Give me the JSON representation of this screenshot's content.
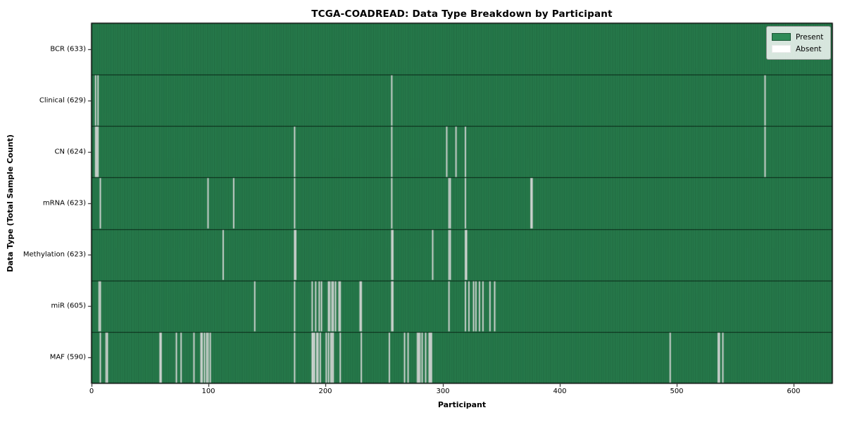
{
  "title": "TCGA-COADREAD: Data Type Breakdown by Participant",
  "xlabel": "Participant",
  "ylabel": "Data Type (Total Sample Count)",
  "legend": {
    "present_label": "Present",
    "absent_label": "Absent"
  },
  "colors": {
    "present": "#2e8b57",
    "absent": "#ffffff",
    "bar_edge": "rgba(8,44,24,0.55)",
    "row_divider": "rgba(5,25,14,0.85)",
    "axis": "#000000"
  },
  "chart_data": {
    "type": "heatmap",
    "title": "TCGA-COADREAD: Data Type Breakdown by Participant",
    "xlabel": "Participant",
    "ylabel": "Data Type (Total Sample Count)",
    "legend_entries": [
      "Present",
      "Absent"
    ],
    "legend_position": "upper right",
    "total_participants": 633,
    "xlim": [
      0,
      633
    ],
    "x_ticks": [
      0,
      100,
      200,
      300,
      400,
      500,
      600
    ],
    "rows": [
      {
        "label": "BCR (633)",
        "data_type": "BCR",
        "count": 633,
        "absent": []
      },
      {
        "label": "Clinical (629)",
        "data_type": "Clinical",
        "count": 629,
        "absent": [
          3,
          5,
          256,
          575
        ]
      },
      {
        "label": "CN (624)",
        "data_type": "CN",
        "count": 624,
        "absent": [
          3,
          4,
          5,
          173,
          256,
          303,
          311,
          319,
          575
        ]
      },
      {
        "label": "mRNA (623)",
        "data_type": "mRNA",
        "count": 623,
        "absent": [
          7,
          99,
          121,
          173,
          256,
          305,
          306,
          319,
          375,
          376
        ]
      },
      {
        "label": "Methylation (623)",
        "data_type": "Methylation",
        "count": 623,
        "absent": [
          112,
          173,
          174,
          256,
          257,
          291,
          305,
          306,
          319,
          320
        ]
      },
      {
        "label": "miR (605)",
        "data_type": "miR",
        "count": 605,
        "absent": [
          6,
          7,
          139,
          173,
          188,
          191,
          194,
          196,
          202,
          203,
          205,
          206,
          208,
          211,
          212,
          229,
          230,
          256,
          257,
          305,
          319,
          322,
          326,
          328,
          331,
          334,
          340,
          344
        ]
      },
      {
        "label": "MAF (590)",
        "data_type": "MAF",
        "count": 590,
        "absent": [
          7,
          12,
          13,
          58,
          59,
          72,
          76,
          87,
          93,
          94,
          96,
          98,
          99,
          101,
          173,
          188,
          189,
          190,
          192,
          193,
          195,
          200,
          202,
          204,
          205,
          206,
          212,
          230,
          254,
          267,
          270,
          278,
          279,
          280,
          282,
          285,
          288,
          289,
          290,
          494,
          535,
          536,
          539
        ]
      }
    ]
  }
}
